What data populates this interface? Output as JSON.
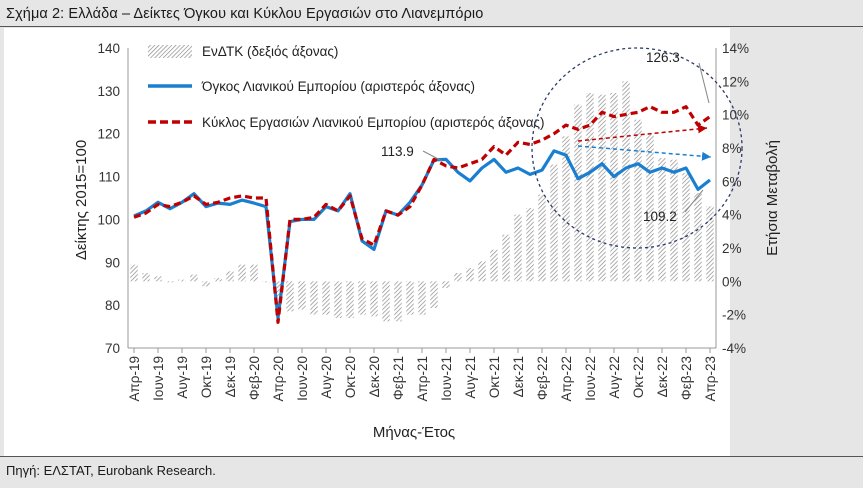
{
  "title": "Σχήμα 2: Ελλάδα – Δείκτες Όγκου και Κύκλου Εργασιών στο Λιανεμπόριο",
  "source": "Πηγή: ΕΛΣΤΑΤ, Eurobank Research.",
  "chart_data": {
    "type": "bar+line",
    "xlabel": "Μήνας-Έτος",
    "ylabel_left": "Δείκτης 2015=100",
    "ylabel_right": "Ετήσια Μεταβολή",
    "ylim_left": [
      70,
      140
    ],
    "ylim_right": [
      -4,
      14
    ],
    "yticks_left": [
      "70",
      "80",
      "90",
      "100",
      "110",
      "120",
      "130",
      "140"
    ],
    "yticks_right": [
      "-4%",
      "-2%",
      "0%",
      "2%",
      "4%",
      "6%",
      "8%",
      "10%",
      "12%",
      "14%"
    ],
    "xtick_labels": [
      "Απρ-19",
      "Ιουν-19",
      "Αυγ-19",
      "Οκτ-19",
      "Δεκ-19",
      "Φεβ-20",
      "Απρ-20",
      "Ιουν-20",
      "Αυγ-20",
      "Οκτ-20",
      "Δεκ-20",
      "Φεβ-21",
      "Απρ-21",
      "Ιουν-21",
      "Αυγ-21",
      "Οκτ-21",
      "Δεκ-21",
      "Φεβ-22",
      "Απρ-22",
      "Ιουν-22",
      "Αυγ-22",
      "Οκτ-22",
      "Δεκ-22",
      "Φεβ-23",
      "Απρ-23"
    ],
    "x": [
      "2019-04",
      "2019-05",
      "2019-06",
      "2019-07",
      "2019-08",
      "2019-09",
      "2019-10",
      "2019-11",
      "2019-12",
      "2020-01",
      "2020-02",
      "2020-03",
      "2020-04",
      "2020-05",
      "2020-06",
      "2020-07",
      "2020-08",
      "2020-09",
      "2020-10",
      "2020-11",
      "2020-12",
      "2021-01",
      "2021-02",
      "2021-03",
      "2021-04",
      "2021-05",
      "2021-06",
      "2021-07",
      "2021-08",
      "2021-09",
      "2021-10",
      "2021-11",
      "2021-12",
      "2022-01",
      "2022-02",
      "2022-03",
      "2022-04",
      "2022-05",
      "2022-06",
      "2022-07",
      "2022-08",
      "2022-09",
      "2022-10",
      "2022-11",
      "2022-12",
      "2023-01",
      "2023-02",
      "2023-03",
      "2023-04"
    ],
    "series": [
      {
        "name": "ΕνΔΤΚ (δεξιός άξονας)",
        "type": "bar",
        "axis": "right",
        "color": "#9a9a9a",
        "values": [
          1.0,
          0.5,
          0.3,
          0.0,
          0.1,
          0.4,
          -0.3,
          0.2,
          0.6,
          1.0,
          1.0,
          0.0,
          -1.0,
          -1.8,
          -1.7,
          -2.0,
          -2.0,
          -2.2,
          -2.2,
          -2.0,
          -2.1,
          -2.4,
          -2.4,
          -2.0,
          -2.0,
          -1.6,
          -0.4,
          0.5,
          0.8,
          1.2,
          1.9,
          2.8,
          4.0,
          4.4,
          5.2,
          7.0,
          8.7,
          10.6,
          11.3,
          11.2,
          11.3,
          12.0,
          9.7,
          8.8,
          7.4,
          7.3,
          6.5,
          5.3,
          4.5
        ]
      },
      {
        "name": "Όγκος Λιανικού Εμπορίου (αριστερός άξονας)",
        "type": "line",
        "axis": "left",
        "color": "#1a7fd0",
        "values": [
          100.8,
          102.0,
          104.0,
          102.5,
          104.0,
          106.0,
          103.0,
          103.8,
          103.5,
          104.5,
          103.8,
          103.0,
          77.0,
          99.5,
          100.0,
          100.0,
          103.0,
          102.0,
          106.0,
          95.0,
          93.0,
          102.0,
          101.0,
          104.0,
          108.0,
          113.9,
          114.0,
          111.0,
          109.0,
          112.0,
          114.0,
          111.0,
          112.0,
          110.5,
          111.5,
          116.0,
          115.0,
          109.5,
          111.0,
          113.0,
          110.0,
          112.0,
          113.0,
          111.0,
          112.0,
          111.0,
          112.0,
          107.0,
          109.2
        ]
      },
      {
        "name": "Κύκλος Εργασιών Λιανικού Εμπορίου (αριστερός άξονας)",
        "type": "line",
        "axis": "left",
        "color": "#c00000",
        "values": [
          100.5,
          101.5,
          103.5,
          103.0,
          104.0,
          105.5,
          103.5,
          104.0,
          105.0,
          105.5,
          105.0,
          105.0,
          76.0,
          100.0,
          100.0,
          100.5,
          103.5,
          102.0,
          105.5,
          95.5,
          94.0,
          102.0,
          101.0,
          103.0,
          108.0,
          114.0,
          112.5,
          112.0,
          113.0,
          114.0,
          117.0,
          115.0,
          118.0,
          117.5,
          118.5,
          120.0,
          122.0,
          121.0,
          122.0,
          125.0,
          124.0,
          124.5,
          125.0,
          126.3,
          125.0,
          125.0,
          126.3,
          122.0,
          124.0
        ]
      }
    ],
    "annotations": [
      "113.9",
      "126.3",
      "109.2"
    ],
    "legend_position": "top-left"
  }
}
